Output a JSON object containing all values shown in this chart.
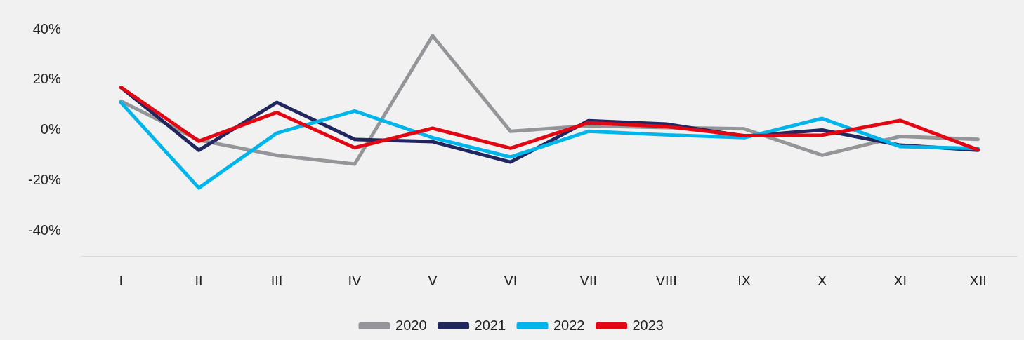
{
  "chart_data": {
    "type": "line",
    "categories": [
      "I",
      "II",
      "III",
      "IV",
      "V",
      "VI",
      "VII",
      "VIII",
      "IX",
      "X",
      "XI",
      "XII"
    ],
    "series": [
      {
        "name": "2020",
        "color": "#939598",
        "values": [
          11.5,
          -4,
          -10,
          -13.5,
          37.5,
          -0.5,
          1.7,
          1,
          0.5,
          -10,
          -2.5,
          -3.7
        ]
      },
      {
        "name": "2021",
        "color": "#21275e",
        "values": [
          17,
          -8,
          11,
          -3.7,
          -4.6,
          -12.7,
          3.7,
          2.4,
          -2.4,
          0,
          -6,
          -8
        ]
      },
      {
        "name": "2022",
        "color": "#00b5ea",
        "values": [
          11,
          -23,
          -1.2,
          7.6,
          -3,
          -10.7,
          -0.5,
          -1.9,
          -3,
          4.6,
          -6.5,
          -7.3
        ]
      },
      {
        "name": "2023",
        "color": "#e30613",
        "values": [
          17,
          -4.4,
          7,
          -7,
          0.7,
          -7.2,
          2.9,
          1.4,
          -2.2,
          -2,
          3.8,
          -7.8
        ]
      }
    ],
    "ylim": [
      -50,
      40
    ],
    "yticks": [
      {
        "value": -40,
        "label": "-40%"
      },
      {
        "value": -20,
        "label": "-20%"
      },
      {
        "value": 0,
        "label": "0%"
      },
      {
        "value": 20,
        "label": "20%"
      },
      {
        "value": 40,
        "label": "40%"
      }
    ],
    "grid": false,
    "legend": "bottom",
    "marker": "none",
    "line_style": "solid"
  }
}
